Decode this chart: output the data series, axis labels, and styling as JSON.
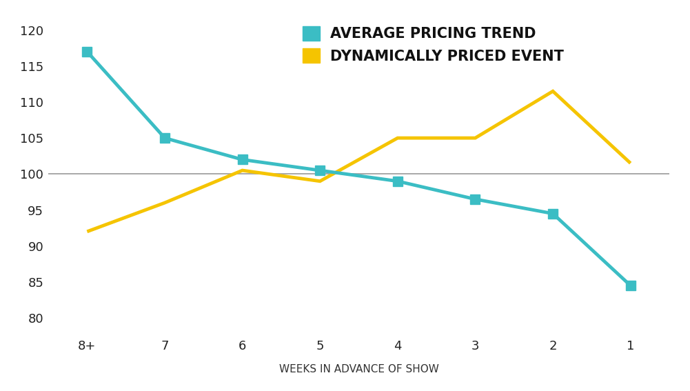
{
  "x_labels": [
    "8+",
    "7",
    "6",
    "5",
    "4",
    "3",
    "2",
    "1"
  ],
  "x_values": [
    0,
    1,
    2,
    3,
    4,
    5,
    6,
    7
  ],
  "avg_pricing": [
    117,
    105,
    102,
    100.5,
    99,
    96.5,
    94.5,
    84.5
  ],
  "dynamic_pricing": [
    92,
    96,
    100.5,
    99,
    105,
    105,
    111.5,
    101.5
  ],
  "avg_color": "#3BBDC4",
  "dynamic_color": "#F5C400",
  "reference_line_y": 100,
  "reference_line_color": "#999999",
  "xlabel": "WEEKS IN ADVANCE OF SHOW",
  "ylim": [
    78,
    122
  ],
  "yticks": [
    80,
    85,
    90,
    95,
    100,
    105,
    110,
    115,
    120
  ],
  "background_color": "#ffffff",
  "legend_label_avg": "AVERAGE PRICING TREND",
  "legend_label_dynamic": "DYNAMICALLY PRICED EVENT",
  "xlabel_fontsize": 11,
  "tick_fontsize": 13,
  "legend_fontsize": 15,
  "line_width": 3.5,
  "marker_size": 10
}
